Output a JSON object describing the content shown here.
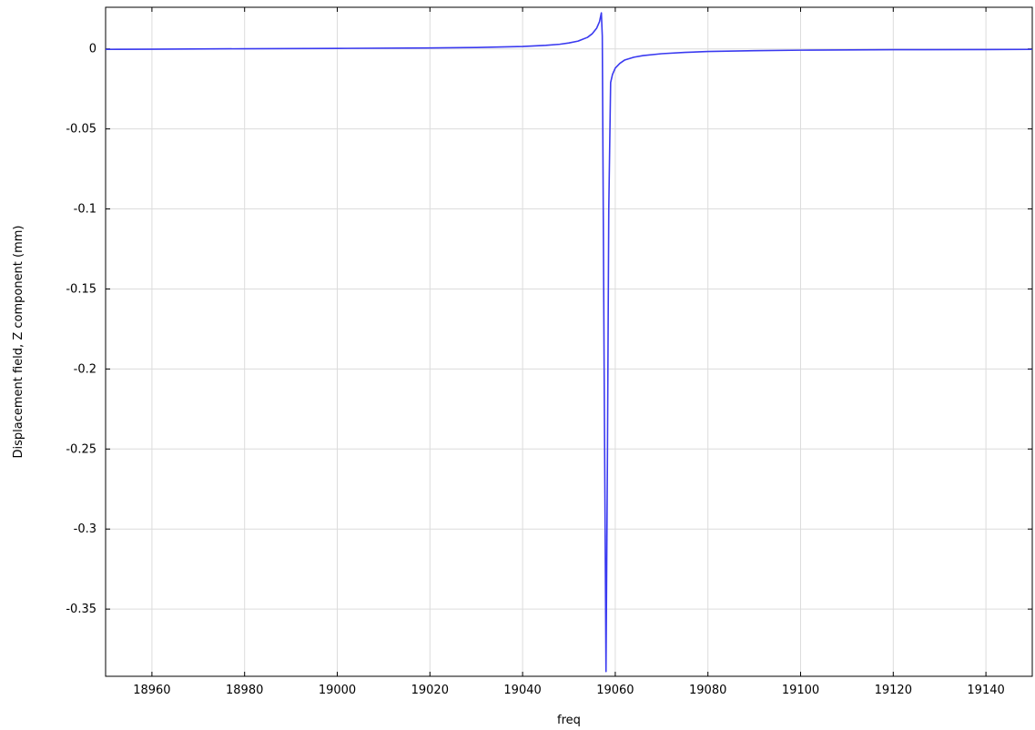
{
  "chart_data": {
    "type": "line",
    "xlabel": "freq",
    "ylabel": "Displacement field, Z component (mm)",
    "xlim": [
      18950,
      19150
    ],
    "ylim": [
      -0.392,
      0.026
    ],
    "x_ticks": [
      18960,
      18980,
      19000,
      19020,
      19040,
      19060,
      19080,
      19100,
      19120,
      19140
    ],
    "y_ticks": [
      0,
      -0.05,
      -0.1,
      -0.15,
      -0.2,
      -0.25,
      -0.3,
      -0.35
    ],
    "y_tick_labels": [
      "0",
      "-0.05",
      "-0.1",
      "-0.15",
      "-0.2",
      "-0.25",
      "-0.3",
      "-0.35"
    ],
    "grid": true,
    "line_color": "#3a3af0",
    "series": [
      {
        "x": [
          18950,
          18960,
          18980,
          19000,
          19020,
          19030,
          19040,
          19045,
          19048,
          19050,
          19052,
          19054,
          19055,
          19056,
          19056.6,
          19057,
          19057.2,
          19057.6,
          19058,
          19058.3,
          19058.6,
          19059,
          19059.4,
          19060,
          19061,
          19062,
          19064,
          19066,
          19070,
          19075,
          19080,
          19090,
          19100,
          19120,
          19140,
          19150
        ],
        "y": [
          -0.0003,
          -0.0002,
          0.0001,
          0.0003,
          0.0006,
          0.0009,
          0.0015,
          0.0022,
          0.0029,
          0.0037,
          0.0049,
          0.0072,
          0.0094,
          0.013,
          0.017,
          0.0225,
          0.008,
          -0.2,
          -0.389,
          -0.26,
          -0.1,
          -0.021,
          -0.016,
          -0.012,
          -0.009,
          -0.007,
          -0.0052,
          -0.0042,
          -0.003,
          -0.0022,
          -0.0016,
          -0.0011,
          -0.0008,
          -0.0005,
          -0.0004,
          -0.0003
        ]
      }
    ]
  }
}
